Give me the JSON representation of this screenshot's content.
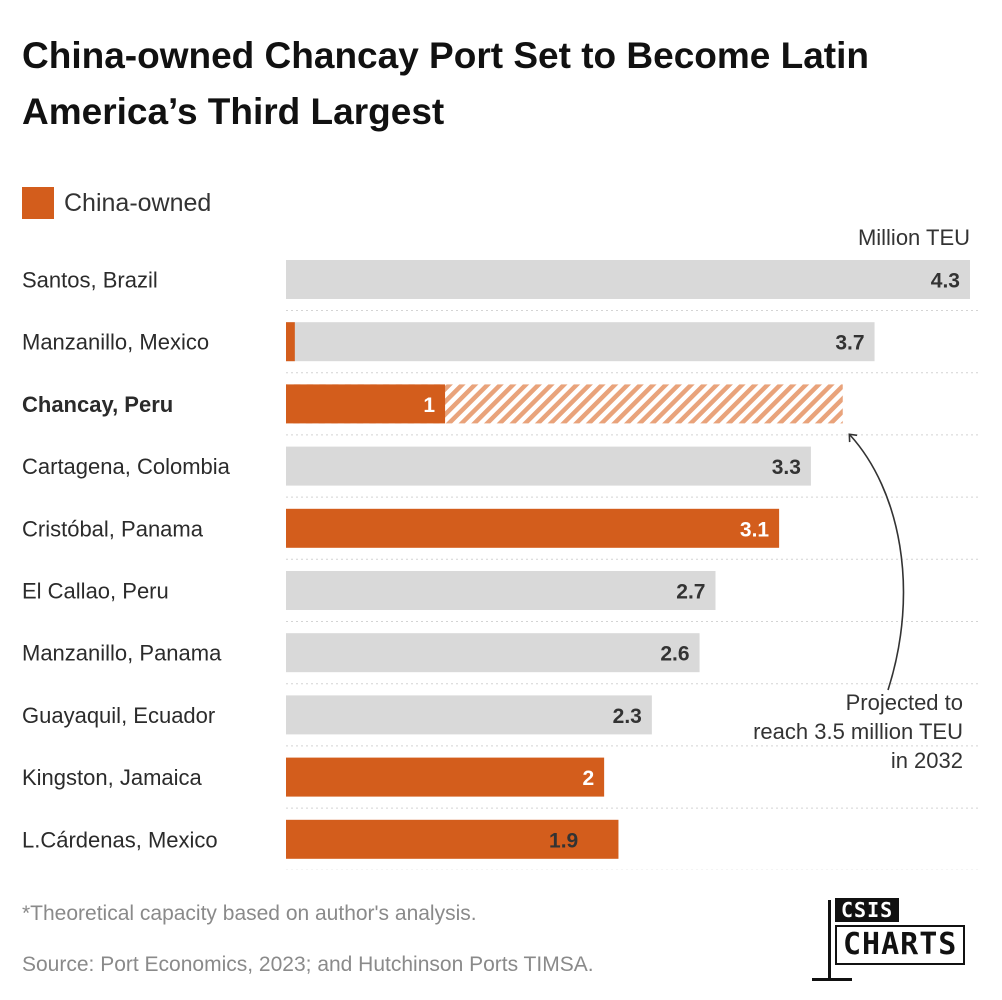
{
  "title": "China-owned Chancay Port Set to Become Latin America’s Third Largest",
  "legend": {
    "label": "China-owned",
    "color": "#d35d1c"
  },
  "colors": {
    "china": "#d35d1c",
    "other": "#d9d9d9",
    "hatch": "#e9a37b",
    "label_dark": "#333333",
    "label_light": "#ffffff"
  },
  "chart_data": {
    "type": "bar",
    "orientation": "horizontal",
    "unit_label": "Million TEU",
    "xlim": [
      0,
      4.3
    ],
    "categories": [
      "Santos, Brazil",
      "Manzanillo, Mexico",
      "Chancay, Peru",
      "Cartagena, Colombia",
      "Cristóbal, Panama",
      "El Callao, Peru",
      "Manzanillo, Panama",
      "Guayaquil, Ecuador",
      "Kingston, Jamaica",
      "L.Cárdenas, Mexico"
    ],
    "values": [
      4.3,
      3.7,
      1,
      3.3,
      3.1,
      2.7,
      2.6,
      2.3,
      2,
      1.9
    ],
    "value_labels": [
      "4.3",
      "3.7",
      "1",
      "3.3",
      "3.1",
      "2.7",
      "2.6",
      "2.3",
      "2",
      "1.9"
    ],
    "china_owned_share": [
      0,
      0.015,
      1,
      0,
      1,
      0,
      0,
      0,
      1,
      1.1
    ],
    "projected": [
      null,
      null,
      3.5,
      null,
      null,
      null,
      null,
      null,
      null,
      null
    ],
    "highlighted": [
      false,
      false,
      true,
      false,
      false,
      false,
      false,
      false,
      false,
      false
    ],
    "annotation": "Projected to reach 3.5 million TEU in 2032",
    "grid": true
  },
  "footnote": "*Theoretical capacity based on author's analysis.",
  "source": "Source: Port Economics, 2023; and Hutchinson Ports TIMSA.",
  "logo": {
    "top": "CSIS",
    "bottom": "CHARTS"
  }
}
